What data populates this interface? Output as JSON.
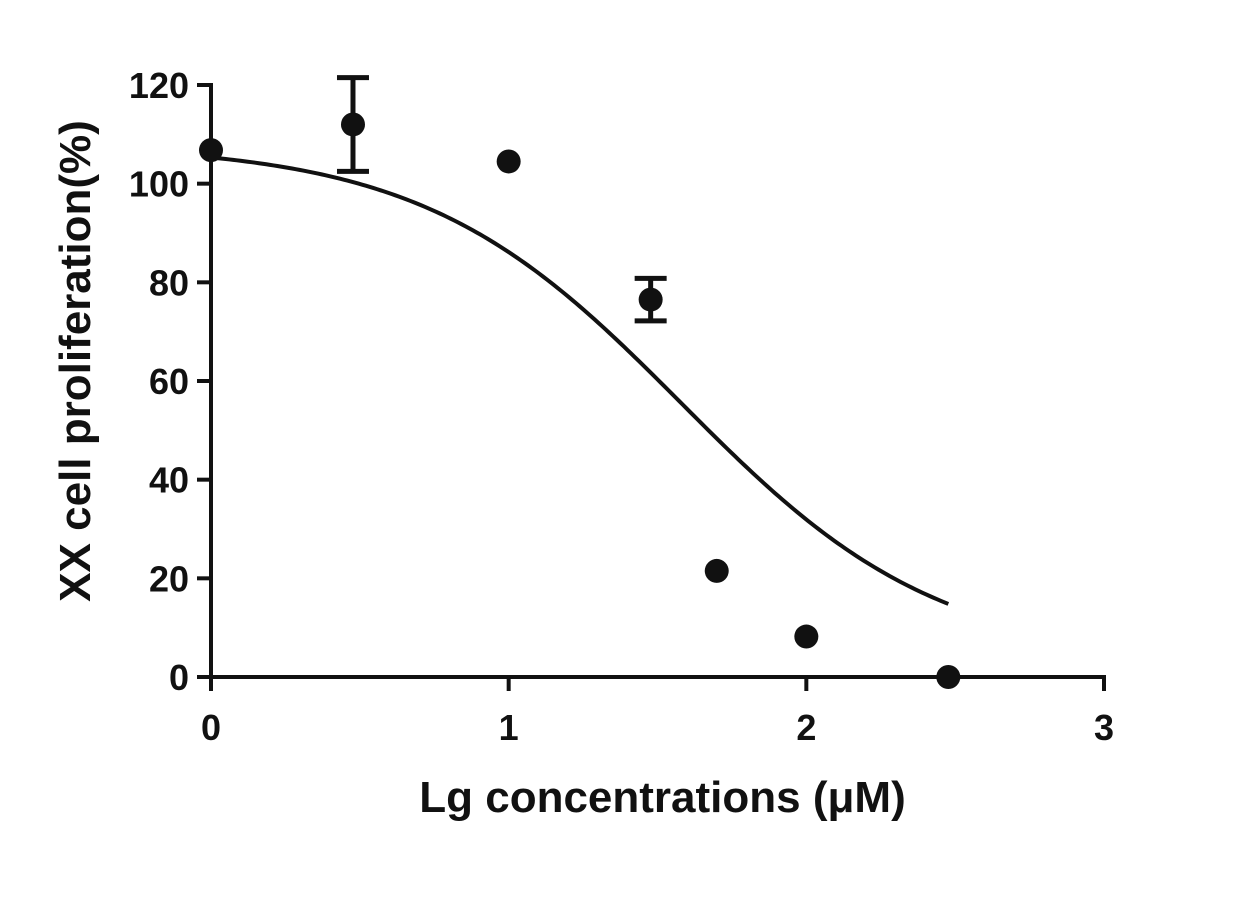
{
  "chart_data": {
    "type": "scatter",
    "title": "",
    "xlabel": "Lg concentrations (μM)",
    "ylabel": "XX cell proliferation(%)",
    "xlim": [
      0,
      3
    ],
    "ylim": [
      0,
      120
    ],
    "x_ticks": [
      "0",
      "1",
      "2",
      "3"
    ],
    "y_ticks": [
      "0",
      "20",
      "40",
      "60",
      "80",
      "100",
      "120"
    ],
    "grid": false,
    "legend": "none",
    "series": [
      {
        "points": [
          {
            "x": 0.0,
            "y": 106.8,
            "err": 0
          },
          {
            "x": 0.477,
            "y": 112.0,
            "err": 9.5
          },
          {
            "x": 1.0,
            "y": 104.5,
            "err": 0
          },
          {
            "x": 1.477,
            "y": 76.5,
            "err": 4.3
          },
          {
            "x": 1.699,
            "y": 21.5,
            "err": 0
          },
          {
            "x": 2.0,
            "y": 8.2,
            "err": 0
          },
          {
            "x": 2.477,
            "y": 0.0,
            "err": 0
          }
        ]
      }
    ],
    "fit": {
      "model": "sigmoidal dose-response",
      "top": 108,
      "bottom": 3,
      "log_ic50": 1.58,
      "hill_slope": -1.0,
      "x_range": [
        0,
        2.477
      ]
    },
    "colors": {
      "marks": "#111111",
      "background": "#ffffff"
    }
  }
}
